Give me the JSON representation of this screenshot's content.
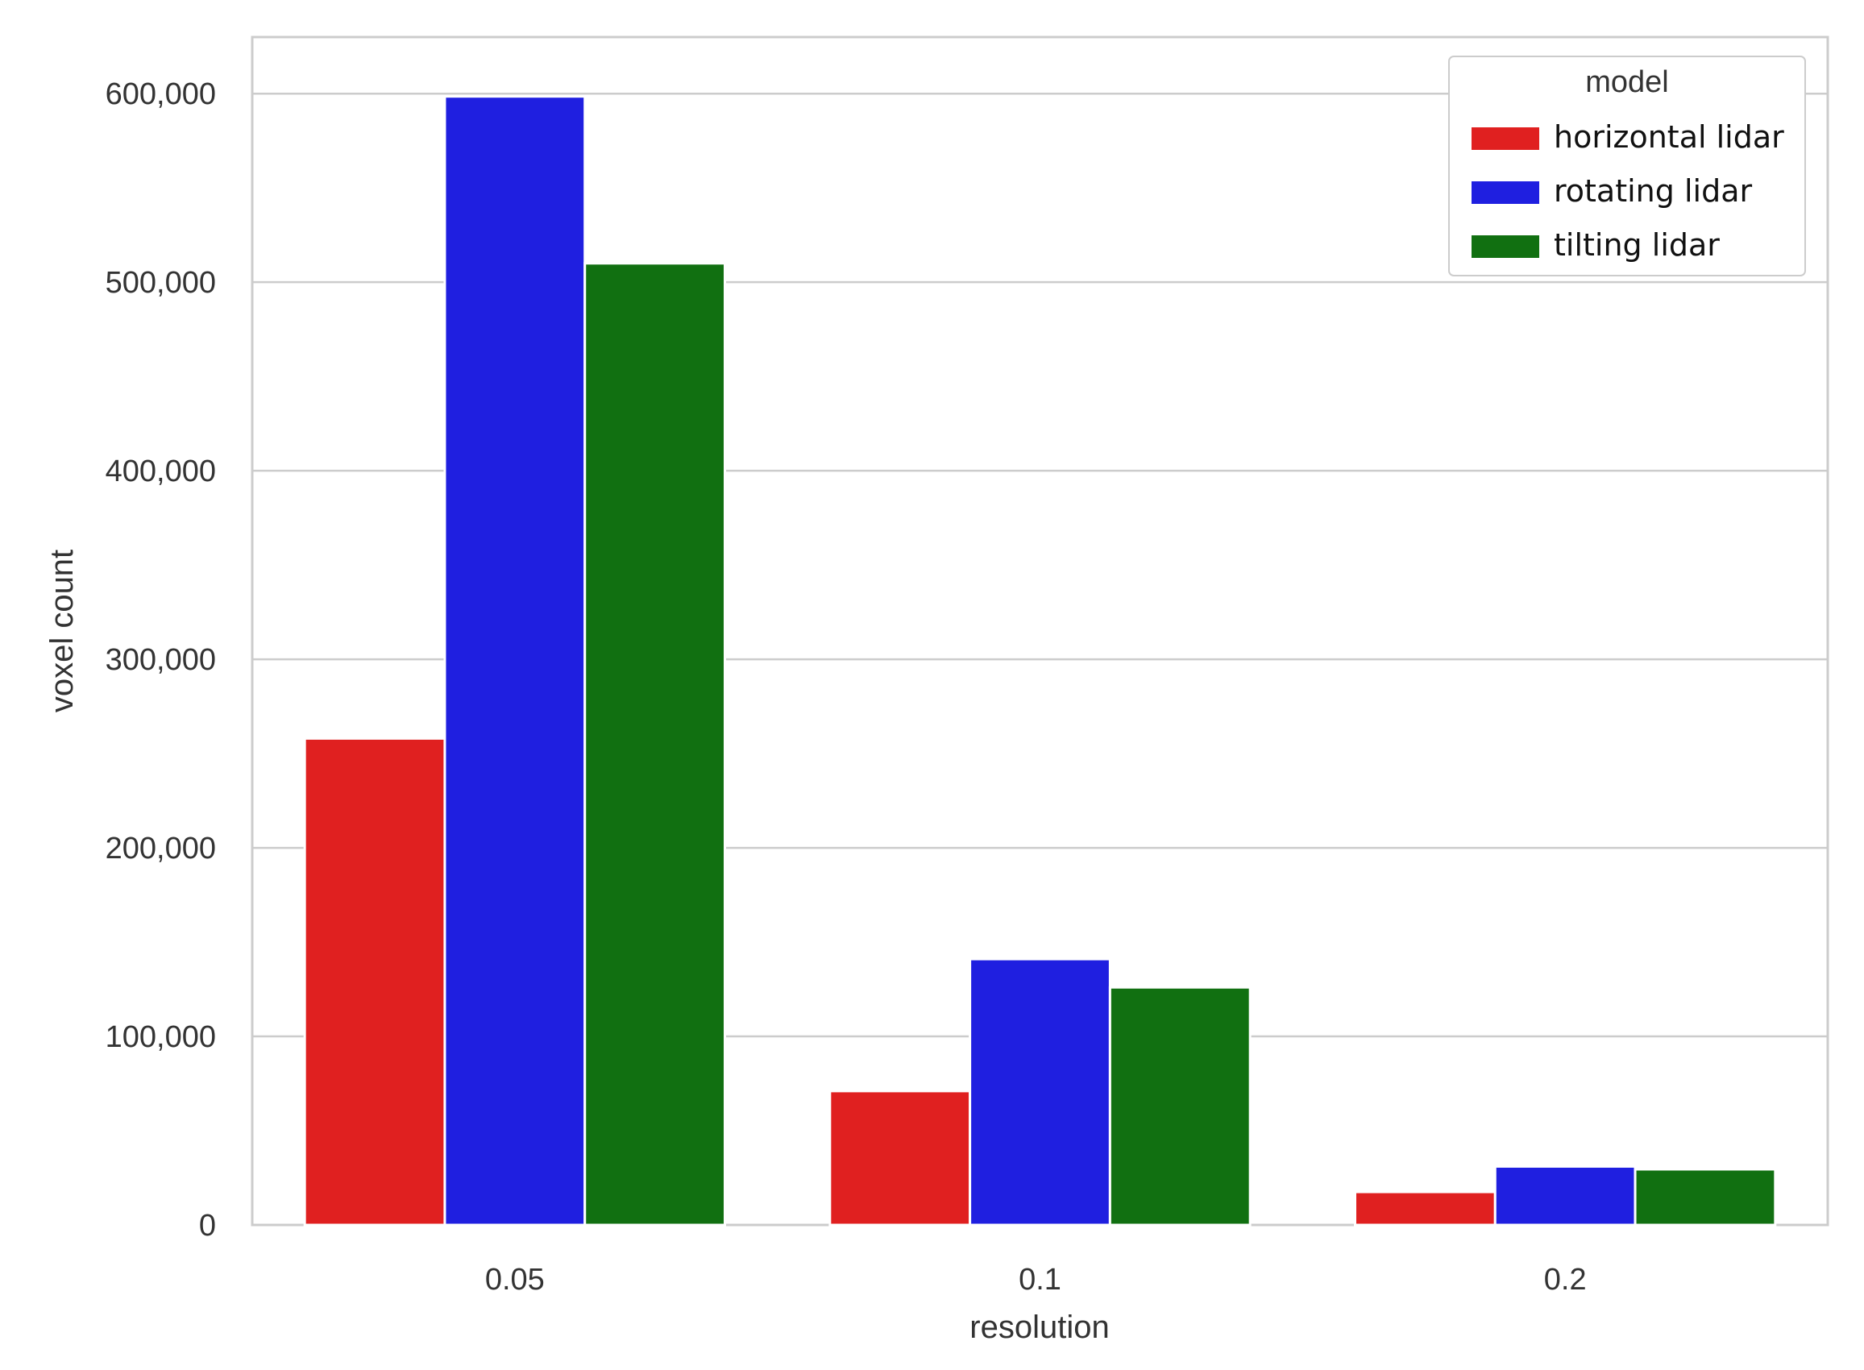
{
  "chart_data": {
    "type": "bar",
    "title": "",
    "xlabel": "resolution",
    "ylabel": "voxel count",
    "categories": [
      "0.05",
      "0.1",
      "0.2"
    ],
    "ylim": [
      0,
      630000
    ],
    "yticks": [
      0,
      100000,
      200000,
      300000,
      400000,
      500000,
      600000
    ],
    "ytick_labels": [
      "0",
      "100,000",
      "200,000",
      "300,000",
      "400,000",
      "500,000",
      "600,000"
    ],
    "grid": true,
    "legend": {
      "title": "model",
      "placement": "top-right"
    },
    "series": [
      {
        "name": "horizontal lidar",
        "color": "#e02020",
        "values": [
          258000,
          71000,
          17500
        ]
      },
      {
        "name": "rotating lidar",
        "color": "#1f1fe0",
        "values": [
          598500,
          141000,
          31000
        ]
      },
      {
        "name": "tilting lidar",
        "color": "#117011",
        "values": [
          510000,
          126000,
          29500
        ]
      }
    ]
  }
}
